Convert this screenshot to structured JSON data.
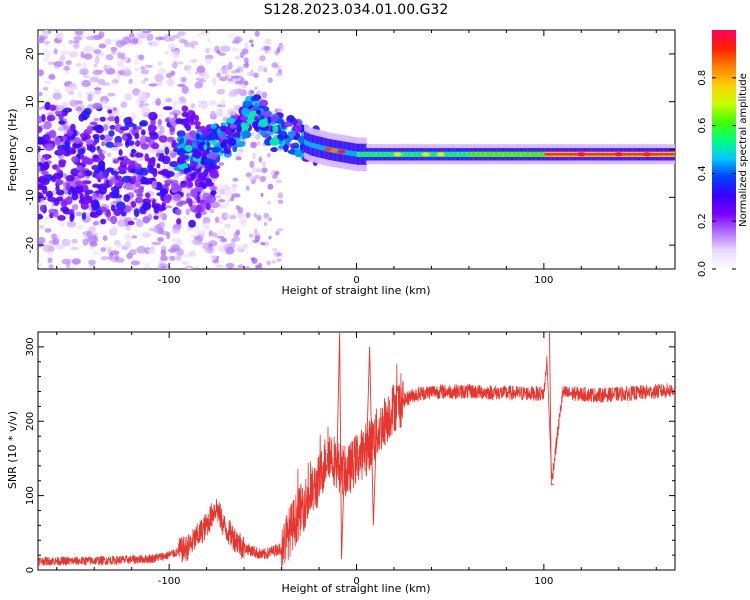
{
  "title": "S128.2023.034.01.00.G32",
  "chart_data": [
    {
      "type": "heatmap",
      "xlabel": "Height of straight line (km)",
      "ylabel": "Frequency (Hz)",
      "xlim": [
        -170,
        170
      ],
      "ylim": [
        -25,
        25
      ],
      "xticks": [
        -100,
        0,
        100
      ],
      "yticks": [
        -20,
        -10,
        0,
        10,
        20
      ],
      "colorbar": {
        "label": "Normalized spectral amplitude",
        "range": [
          0.0,
          1.0
        ],
        "ticks": [
          0.0,
          0.2,
          0.4,
          0.6,
          0.8
        ],
        "colormap": [
          "#ffffff",
          "#e8d8ff",
          "#b070ff",
          "#7a00ff",
          "#3a00ff",
          "#0040ff",
          "#00c8ff",
          "#00ff80",
          "#40ff00",
          "#c8ff00",
          "#ffd000",
          "#ff8000",
          "#ff2000",
          "#ff0060"
        ]
      },
      "ridge": [
        {
          "x": -90,
          "y": 0
        },
        {
          "x": -80,
          "y": 1
        },
        {
          "x": -70,
          "y": 2
        },
        {
          "x": -60,
          "y": 5
        },
        {
          "x": -55,
          "y": 9
        },
        {
          "x": -50,
          "y": 7
        },
        {
          "x": -45,
          "y": 3
        },
        {
          "x": -40,
          "y": 4
        },
        {
          "x": -35,
          "y": 3
        },
        {
          "x": -25,
          "y": 1
        },
        {
          "x": -15,
          "y": 0
        },
        {
          "x": 0,
          "y": -1
        },
        {
          "x": 50,
          "y": -1
        },
        {
          "x": 100,
          "y": -1
        },
        {
          "x": 170,
          "y": -1
        }
      ]
    },
    {
      "type": "line",
      "xlabel": "Height of straight line (km)",
      "ylabel": "SNR (10 * v/v)",
      "xlim": [
        -170,
        170
      ],
      "ylim": [
        0,
        320
      ],
      "xticks": [
        -100,
        0,
        100
      ],
      "yticks": [
        0,
        100,
        200,
        300
      ],
      "color": "#e8352e",
      "series": [
        {
          "values": [
            [
              -170,
              12
            ],
            [
              -150,
              12
            ],
            [
              -130,
              13
            ],
            [
              -110,
              15
            ],
            [
              -100,
              20
            ],
            [
              -90,
              30
            ],
            [
              -80,
              60
            ],
            [
              -75,
              85
            ],
            [
              -70,
              55
            ],
            [
              -60,
              30
            ],
            [
              -50,
              20
            ],
            [
              -40,
              30
            ],
            [
              -30,
              80
            ],
            [
              -20,
              120
            ],
            [
              -15,
              160
            ],
            [
              -10,
              140
            ],
            [
              -5,
              130
            ],
            [
              0,
              150
            ],
            [
              5,
              160
            ],
            [
              10,
              180
            ],
            [
              20,
              220
            ],
            [
              30,
              235
            ],
            [
              40,
              240
            ],
            [
              60,
              240
            ],
            [
              80,
              238
            ],
            [
              100,
              237
            ],
            [
              103,
              320
            ],
            [
              104,
              115
            ],
            [
              110,
              238
            ],
            [
              130,
              235
            ],
            [
              150,
              238
            ],
            [
              170,
              242
            ]
          ]
        }
      ],
      "spikes": [
        {
          "x": -9,
          "y": 320
        },
        {
          "x": -8,
          "y": 15
        },
        {
          "x": 7,
          "y": 300
        },
        {
          "x": 9,
          "y": 60
        },
        {
          "x": 103,
          "y": 320
        },
        {
          "x": 104,
          "y": 115
        }
      ]
    }
  ]
}
